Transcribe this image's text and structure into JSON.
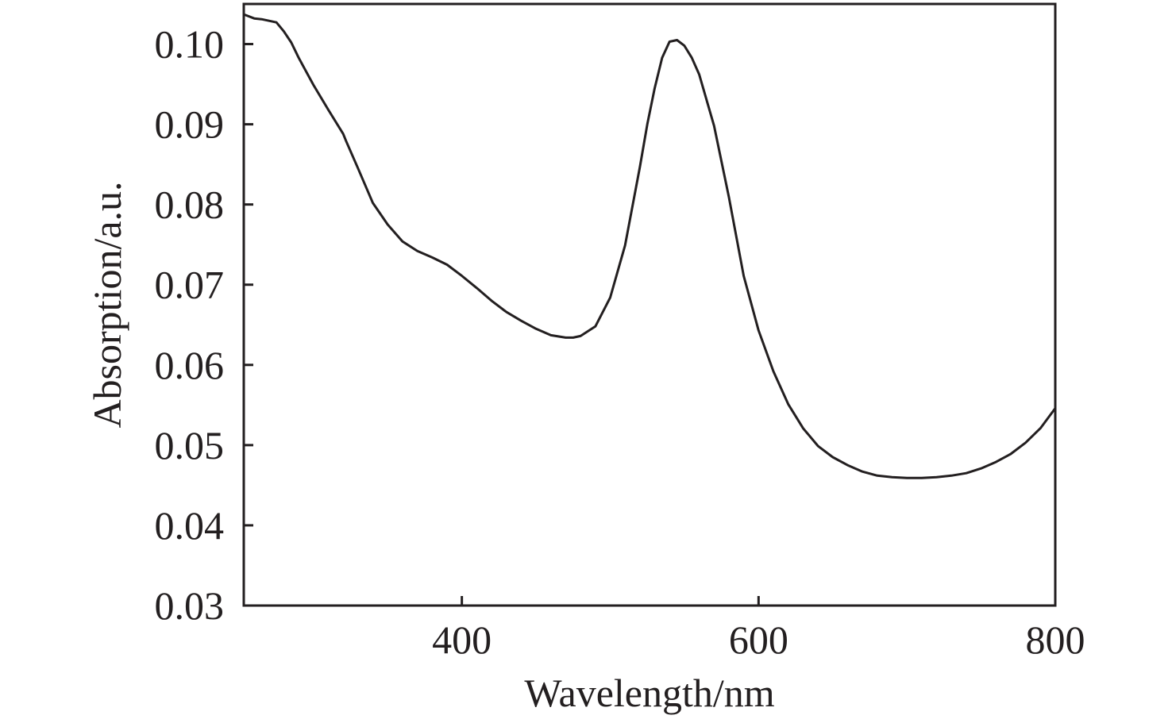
{
  "chart_data": {
    "type": "line",
    "title": "",
    "xlabel": "Wavelength/nm",
    "ylabel": "Absorption/a.u.",
    "xlim": [
      253,
      800
    ],
    "ylim": [
      0.03,
      0.105
    ],
    "x_ticks": [
      400,
      600,
      800
    ],
    "x_tick_labels": [
      "400",
      "600",
      "800"
    ],
    "y_ticks": [
      0.03,
      0.04,
      0.05,
      0.06,
      0.07,
      0.08,
      0.09,
      0.1
    ],
    "y_tick_labels": [
      "0.03",
      "0.04",
      "0.05",
      "0.06",
      "0.07",
      "0.08",
      "0.09",
      "0.10"
    ],
    "grid": false,
    "legend": "none",
    "line_color": "#231f20",
    "series": [
      {
        "x": [
          253,
          260,
          265,
          270,
          275,
          280,
          285,
          290,
          300,
          310,
          320,
          322,
          330,
          340,
          350,
          360,
          370,
          380,
          390,
          400,
          410,
          420,
          430,
          440,
          450,
          460,
          470,
          475,
          480,
          490,
          500,
          510,
          520,
          525,
          530,
          535,
          540,
          545,
          550,
          555,
          560,
          570,
          580,
          590,
          600,
          610,
          620,
          630,
          640,
          650,
          660,
          670,
          680,
          690,
          700,
          710,
          720,
          730,
          740,
          750,
          760,
          770,
          780,
          790,
          800
        ],
        "y": [
          0.1037,
          0.1032,
          0.1031,
          0.1029,
          0.1027,
          0.1016,
          0.1002,
          0.0983,
          0.0949,
          0.0918,
          0.0888,
          0.0879,
          0.0845,
          0.0802,
          0.0775,
          0.0754,
          0.0742,
          0.0734,
          0.0725,
          0.0711,
          0.0696,
          0.068,
          0.0666,
          0.0655,
          0.0645,
          0.0637,
          0.0634,
          0.0634,
          0.0636,
          0.0648,
          0.0684,
          0.0749,
          0.0847,
          0.09,
          0.0945,
          0.0983,
          0.1003,
          0.1005,
          0.0998,
          0.0983,
          0.0962,
          0.0898,
          0.0809,
          0.0711,
          0.0643,
          0.0592,
          0.0551,
          0.0521,
          0.0499,
          0.0485,
          0.0475,
          0.0467,
          0.0462,
          0.046,
          0.0459,
          0.0459,
          0.046,
          0.0462,
          0.0465,
          0.0471,
          0.0479,
          0.0489,
          0.0503,
          0.0521,
          0.0546
        ]
      }
    ]
  }
}
